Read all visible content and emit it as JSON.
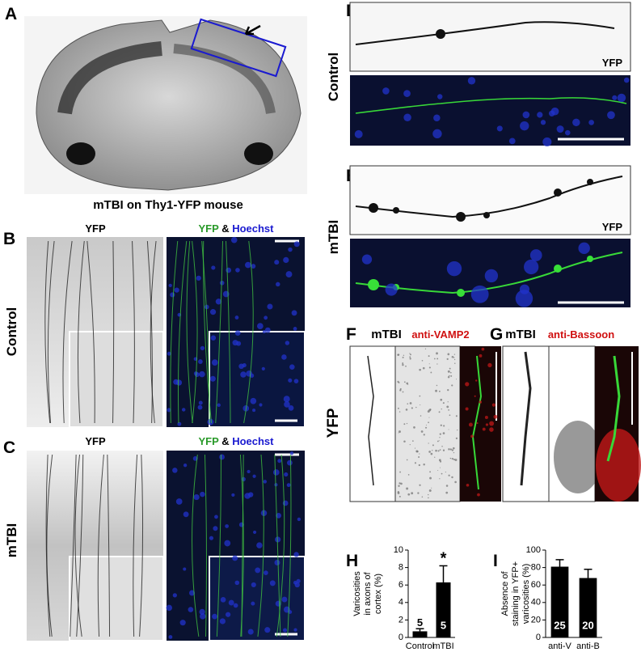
{
  "panel_labels": [
    "A",
    "B",
    "C",
    "D",
    "E",
    "F",
    "G",
    "H",
    "I"
  ],
  "panel_a": {
    "caption": "mTBI on Thy1-YFP mouse"
  },
  "panel_b": {
    "left_title": "YFP",
    "right_title": [
      "YFP",
      "&",
      "Hoechst"
    ],
    "row_label": "Control"
  },
  "panel_c": {
    "left_title": "YFP",
    "right_title": [
      "YFP",
      "&",
      "Hoechst"
    ],
    "row_label": "mTBI"
  },
  "panel_d": {
    "row_label": "Control",
    "image_label": "YFP"
  },
  "panel_e": {
    "row_label": "mTBI",
    "image_label": "YFP"
  },
  "panel_f": {
    "title": [
      "mTBI",
      "anti-VAMP2"
    ]
  },
  "panel_g": {
    "title": [
      "mTBI",
      "anti-Bassoon"
    ]
  },
  "fg_row_label": "YFP",
  "chart_data": [
    {
      "type": "bar",
      "y_label": [
        "Varicosities",
        "in axons of",
        "cortex (%)"
      ],
      "categories": [
        "Control",
        "mTBI"
      ],
      "values": [
        0.7,
        6.3
      ],
      "errors": [
        0.3,
        1.9
      ],
      "n_labels": [
        "5",
        "5"
      ],
      "significance": [
        null,
        "*"
      ],
      "color": "#000000",
      "ylim": [
        0,
        10
      ],
      "yticks": [
        0,
        2,
        4,
        6,
        8,
        10
      ]
    },
    {
      "type": "bar",
      "y_label": [
        "Absence of",
        "staining in YFP+",
        "varicosities (%)"
      ],
      "categories": [
        "anti-V",
        "anti-B"
      ],
      "values": [
        81,
        68
      ],
      "errors": [
        8,
        10
      ],
      "n_labels": [
        "25",
        "20"
      ],
      "significance": [
        null,
        null
      ],
      "color": "#000000",
      "ylim": [
        0,
        100
      ],
      "yticks": [
        0,
        20,
        40,
        60,
        80,
        100
      ]
    }
  ]
}
